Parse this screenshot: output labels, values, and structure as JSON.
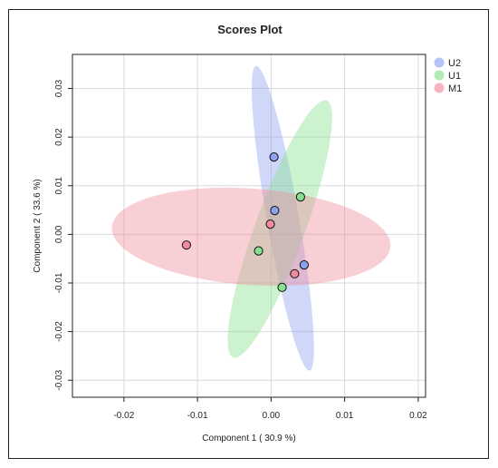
{
  "chart_data": {
    "type": "scatter",
    "title": "Scores Plot",
    "xlabel": "Component 1 ( 30.9 %)",
    "ylabel": "Component 2 ( 33.6 %)",
    "xlim": [
      -0.027,
      0.021
    ],
    "ylim": [
      -0.0335,
      0.037
    ],
    "xticks": [
      -0.02,
      -0.01,
      0.0,
      0.01,
      0.02
    ],
    "xtick_labels": [
      "-0.02",
      "-0.01",
      "0.00",
      "0.01",
      "0.02"
    ],
    "yticks": [
      -0.03,
      -0.02,
      -0.01,
      0.0,
      0.01,
      0.02,
      0.03
    ],
    "ytick_labels": [
      "-0.03",
      "-0.02",
      "-0.01",
      "0.00",
      "0.01",
      "0.02",
      "0.03"
    ],
    "grid": true,
    "legend_position": "top-right",
    "series": [
      {
        "name": "U2",
        "color": "#8ea3f0",
        "points": [
          [
            0.0004,
            0.0159
          ],
          [
            0.0005,
            0.0049
          ],
          [
            0.0045,
            -0.0063
          ]
        ],
        "ellipse": {
          "cx": 0.0016,
          "cy": 0.0033,
          "rx": 0.0312,
          "ry": 0.0022,
          "angle_deg": -80.0
        }
      },
      {
        "name": "U1",
        "color": "#86e08f",
        "points": [
          [
            0.004,
            0.0077
          ],
          [
            -0.0017,
            -0.0034
          ],
          [
            0.0015,
            -0.0109
          ]
        ],
        "ellipse": {
          "cx": 0.0012,
          "cy": 0.0011,
          "rx": 0.0262,
          "ry": 0.0035,
          "angle_deg": 70.0
        }
      },
      {
        "name": "M1",
        "color": "#f08c9e",
        "points": [
          [
            -0.0115,
            -0.0022
          ],
          [
            -0.0001,
            0.0021
          ],
          [
            0.0032,
            -0.0081
          ]
        ],
        "ellipse": {
          "cx": -0.0027,
          "cy": -0.0005,
          "rx": 0.019,
          "ry": 0.0099,
          "angle_deg": -4.0
        }
      }
    ]
  }
}
